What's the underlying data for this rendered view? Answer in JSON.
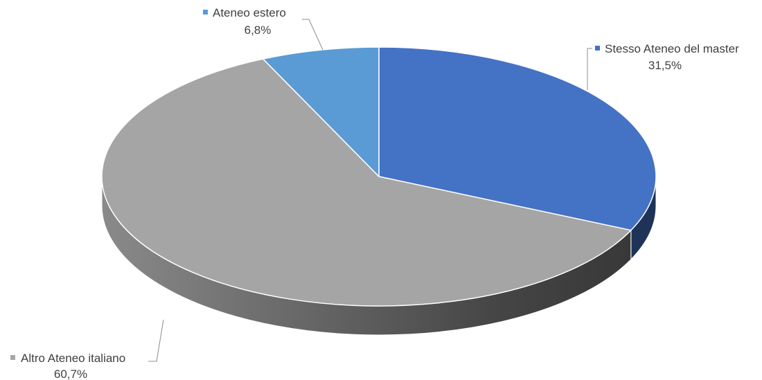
{
  "chart_data": {
    "type": "pie",
    "title": "",
    "slices": [
      {
        "label": "Stesso Ateneo del master",
        "value": 31.5,
        "value_label": "31,5%",
        "color": "#4472C4"
      },
      {
        "label": "Altro Ateneo italiano",
        "value": 60.7,
        "value_label": "60,7%",
        "color": "#A5A5A5"
      },
      {
        "label": "Ateneo estero",
        "value": 6.8,
        "value_label": "6,8%",
        "color": "#5B9BD5"
      }
    ],
    "style": "3d",
    "legend": "none",
    "data_labels": "outside-with-leader-lines"
  }
}
